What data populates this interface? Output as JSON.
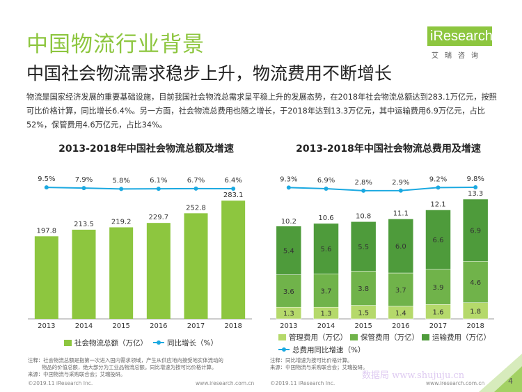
{
  "page": {
    "title": "中国物流行业背景",
    "subtitle": "中国社会物流需求稳步上升，物流费用不断增长",
    "intro": "物流是国家经济发展的重要基础设施，目前我国社会物流总需求呈平稳上升的发展态势，在2018年社会物流总额达到283.1万亿元，按照可比价格计算，同比增长6.4%。另一方面，社会物流总费用也随之增长，于2018年达到13.3万亿元，其中运输费用6.9万亿元，占比52%，保管费用4.6万亿元，占比34%。",
    "logo_text": "iResearch",
    "logo_sub": "艾瑞咨询",
    "page_number": "4",
    "watermark": "数据局 www.shujuju.cn",
    "colors": {
      "green": "#8dc63f",
      "green_mid": "#70b34a",
      "green_dark": "#4e9b3b",
      "green_light": "#b5d96b",
      "line_blue": "#1ba9e1"
    }
  },
  "chart_data": [
    {
      "type": "bar",
      "title": "2013-2018年中国社会物流总额及增速",
      "categories": [
        "2013",
        "2014",
        "2015",
        "2016",
        "2017",
        "2018"
      ],
      "series": [
        {
          "name": "社会物流总额（万亿）",
          "type": "bar",
          "values": [
            197.8,
            213.5,
            219.2,
            229.7,
            252.8,
            283.1
          ],
          "labels": [
            "197.8",
            "213.5",
            "219.2",
            "229.7",
            "252.8",
            "283.1"
          ]
        },
        {
          "name": "同比增长（%）",
          "type": "line",
          "values": [
            9.5,
            7.9,
            5.8,
            6.1,
            6.7,
            6.4
          ],
          "labels": [
            "9.5%",
            "7.9%",
            "5.8%",
            "6.1%",
            "6.7%",
            "6.4%"
          ]
        }
      ],
      "notes": [
        "注释：社会物流总额是指第一次进入国内需求领域，产生从供应地向接受地实体流动的",
        "物品的价值总额，绝大部分为工业品物流总额。同比增速为按可比价格计算。",
        "来源：中国物流与采购联合会；艾瑞投研。"
      ],
      "copyright": "©2019.11 iResearch Inc.",
      "site": "www.iresearch.com.cn"
    },
    {
      "type": "bar",
      "stacked": true,
      "title": "2013-2018年中国社会物流总费用及增速",
      "categories": [
        "2013",
        "2014",
        "2015",
        "2016",
        "2017",
        "2018"
      ],
      "series": [
        {
          "name": "管理费用（万亿）",
          "type": "bar",
          "values": [
            1.3,
            1.3,
            1.5,
            1.4,
            1.6,
            1.8
          ],
          "labels": [
            "1.3",
            "1.3",
            "1.5",
            "1.4",
            "1.6",
            "1.8"
          ]
        },
        {
          "name": "保管费用（万亿）",
          "type": "bar",
          "values": [
            3.6,
            3.7,
            3.8,
            3.7,
            3.9,
            4.6
          ],
          "labels": [
            "3.6",
            "3.7",
            "3.8",
            "3.7",
            "3.9",
            "4.6"
          ]
        },
        {
          "name": "运输费用（万亿）",
          "type": "bar",
          "values": [
            5.4,
            5.6,
            5.5,
            6.0,
            6.6,
            6.9
          ],
          "labels": [
            "5.4",
            "5.6",
            "5.5",
            "6.0",
            "6.6",
            "6.9"
          ]
        },
        {
          "name": "总费用同比增速（%）",
          "type": "line",
          "values": [
            9.3,
            6.9,
            2.8,
            2.9,
            9.2,
            9.8
          ],
          "labels": [
            "9.3%",
            "6.9%",
            "2.8%",
            "2.9%",
            "9.2%",
            "9.8%"
          ]
        }
      ],
      "totals": [
        10.2,
        10.6,
        10.8,
        11.1,
        12.1,
        13.3
      ],
      "total_labels": [
        "10.2",
        "10.6",
        "10.8",
        "11.1",
        "12.1",
        "13.3"
      ],
      "notes": [
        "注释：同比增速为按可比价格计算。",
        "来源：中国物流与采购联合会；艾瑞投研。"
      ],
      "copyright": "©2019.11 iResearch Inc.",
      "site": "www.iresearch.com.cn"
    }
  ]
}
